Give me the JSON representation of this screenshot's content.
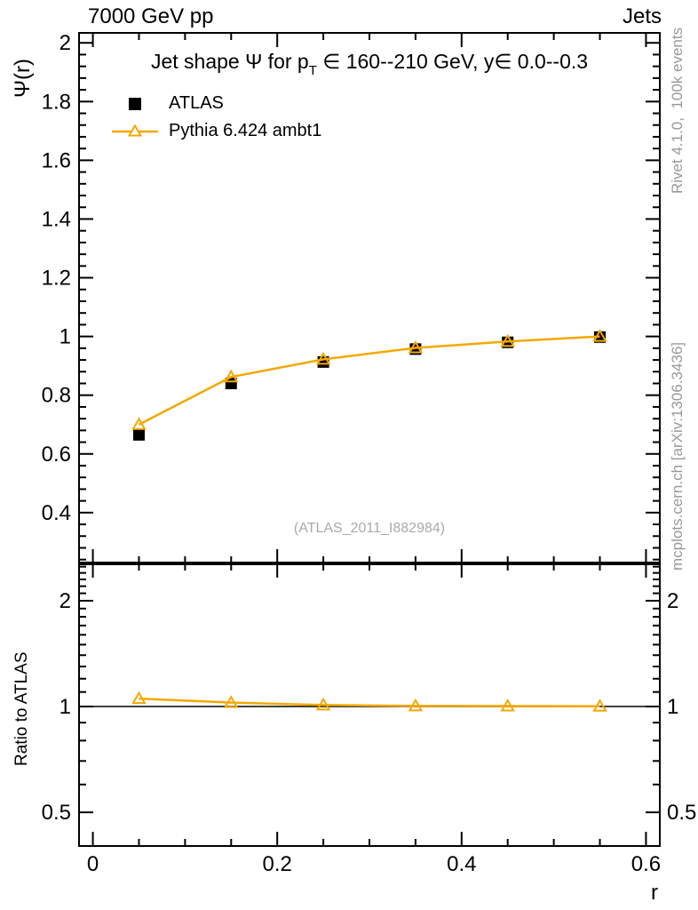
{
  "header": {
    "left": "7000 GeV pp",
    "right": "Jets"
  },
  "side_notes": {
    "top": "Rivet 4.1.0,  100k events",
    "bottom": "mcplots.cern.ch [arXiv:1306.3436]",
    "color": "#999999"
  },
  "watermark": {
    "text": "(ATLAS_2011_I882984)",
    "color": "#aaaaaa"
  },
  "chart_data": {
    "type": "line",
    "title": {
      "pre": "Jet shape Ψ for p",
      "sub": "T",
      "post": " ∈ 160--210 GeV, y∈ 0.0--0.3"
    },
    "xlabel": "r",
    "ylabel": "Ψ(r)",
    "ratio_ylabel": "Ratio to ATLAS",
    "x": [
      0.05,
      0.15,
      0.25,
      0.35,
      0.45,
      0.55
    ],
    "series": [
      {
        "name": "ATLAS",
        "kind": "data-points",
        "marker": "filled-square",
        "color": "#000000",
        "values": [
          0.665,
          0.84,
          0.913,
          0.957,
          0.98,
          0.998
        ]
      },
      {
        "name": "Pythia 6.424 ambt1",
        "kind": "mc-line",
        "marker": "open-triangle",
        "color": "#f5a800",
        "values": [
          0.7,
          0.862,
          0.922,
          0.961,
          0.983,
          1.0
        ]
      }
    ],
    "ratio": {
      "name": "Pythia 6.424 ambt1",
      "reference": 1.0,
      "values": [
        1.053,
        1.026,
        1.01,
        1.004,
        1.003,
        1.002
      ]
    },
    "axes": {
      "x": {
        "lim": [
          -0.015,
          0.615
        ],
        "scale": "linear",
        "major": [
          0,
          0.2,
          0.4,
          0.6
        ],
        "major_labels": [
          "0",
          "0.2",
          "0.4",
          "0.6"
        ],
        "minor_step": 0.05
      },
      "y_main": {
        "lim": [
          0.227,
          2.034
        ],
        "scale": "linear",
        "major_start": 0.4,
        "major_end": 2.0,
        "major_step": 0.2,
        "minor_step": 0.04
      },
      "y_ratio": {
        "lim": [
          0.401,
          2.554
        ],
        "scale": "log",
        "major": [
          0.5,
          1,
          2
        ],
        "major_labels": [
          "0.5",
          "1",
          "2"
        ],
        "minor": [
          0.6,
          0.7,
          0.8,
          0.9,
          1.1,
          1.2,
          1.3,
          1.4,
          1.5,
          1.6,
          1.7,
          1.8,
          1.9,
          2.1,
          2.2,
          2.3,
          2.4,
          2.5
        ]
      }
    },
    "legend": {
      "position": "top-left",
      "entries": [
        "ATLAS",
        "Pythia 6.424 ambt1"
      ]
    },
    "grid": false
  }
}
